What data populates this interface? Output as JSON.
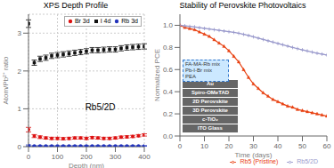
{
  "chart_data": [
    {
      "type": "scatter",
      "title": "XPS Depth Profile",
      "xlabel": "Depth (nm)",
      "ylabel": "Atom/Pb²⁺ ratio",
      "x": [
        0,
        20,
        40,
        60,
        80,
        100,
        120,
        140,
        160,
        180,
        200,
        220,
        240,
        260,
        280,
        300,
        320,
        340,
        360,
        380,
        400
      ],
      "series": [
        {
          "name": "Br 3d",
          "color": "#dd1111",
          "marker": "circle",
          "values": [
            0.45,
            0.28,
            0.25,
            0.23,
            0.22,
            0.22,
            0.21,
            0.22,
            0.23,
            0.23,
            0.22,
            0.24,
            0.23,
            0.22,
            0.22,
            0.23,
            0.25,
            0.26,
            0.27,
            0.29,
            0.31
          ],
          "errors": [
            0.06,
            0.04,
            0.035,
            0.03,
            0.03,
            0.03,
            0.03,
            0.03,
            0.03,
            0.03,
            0.03,
            0.03,
            0.03,
            0.03,
            0.03,
            0.03,
            0.03,
            0.03,
            0.03,
            0.03,
            0.03
          ]
        },
        {
          "name": "I 4d",
          "color": "#111111",
          "marker": "square",
          "values": [
            3.25,
            2.22,
            2.32,
            2.35,
            2.4,
            2.42,
            2.44,
            2.46,
            2.48,
            2.5,
            2.52,
            2.55,
            2.55,
            2.56,
            2.57,
            2.57,
            2.6,
            2.62,
            2.63,
            2.64,
            2.65
          ],
          "errors": [
            0.1,
            0.07,
            0.07,
            0.07,
            0.07,
            0.07,
            0.07,
            0.07,
            0.07,
            0.07,
            0.07,
            0.07,
            0.07,
            0.07,
            0.07,
            0.07,
            0.07,
            0.07,
            0.07,
            0.07,
            0.07
          ]
        },
        {
          "name": "Rb 3d",
          "color": "#2233bb",
          "marker": "circle",
          "values": [
            0.03,
            0.02,
            0.02,
            0.02,
            0.02,
            0.02,
            0.02,
            0.02,
            0.02,
            0.02,
            0.02,
            0.02,
            0.02,
            0.02,
            0.02,
            0.02,
            0.02,
            0.02,
            0.02,
            0.02,
            0.02
          ],
          "errors": [
            0.015,
            0.01,
            0.01,
            0.01,
            0.01,
            0.01,
            0.01,
            0.01,
            0.01,
            0.01,
            0.01,
            0.01,
            0.01,
            0.01,
            0.01,
            0.01,
            0.01,
            0.01,
            0.01,
            0.01,
            0.01
          ]
        }
      ],
      "xlim": [
        0,
        400
      ],
      "ylim": [
        0,
        3.5
      ],
      "xticks": [
        0,
        100,
        200,
        300,
        400
      ],
      "yticks": [
        0,
        1,
        2,
        3
      ],
      "grid": true,
      "legend": "upper right",
      "annotations": [
        "Rb5/2D"
      ]
    },
    {
      "type": "line",
      "title": "Stability of Perovskite Photovoltaics",
      "xlabel": "Time (days)",
      "ylabel": "Normalized PCE",
      "x": [
        0,
        2,
        4,
        6,
        8,
        10,
        12,
        14,
        16,
        18,
        20,
        22,
        24,
        26,
        28,
        30,
        32,
        34,
        36,
        38,
        40,
        42,
        44,
        46,
        48,
        50,
        52,
        54,
        56,
        58,
        60
      ],
      "series": [
        {
          "name": "Rb5 (Pristine)",
          "color": "#e84010",
          "marker": "triangle",
          "values": [
            1.0,
            0.98,
            0.97,
            0.96,
            0.94,
            0.92,
            0.9,
            0.87,
            0.84,
            0.81,
            0.77,
            0.72,
            0.67,
            0.6,
            0.53,
            0.47,
            0.43,
            0.39,
            0.36,
            0.33,
            0.31,
            0.29,
            0.27,
            0.26,
            0.24,
            0.23,
            0.22,
            0.21,
            0.2,
            0.19,
            0.18
          ]
        },
        {
          "name": "Rb5/2D",
          "color": "#9999cc",
          "marker": "plus",
          "values": [
            1.0,
            0.995,
            0.99,
            0.985,
            0.978,
            0.972,
            0.966,
            0.96,
            0.954,
            0.948,
            0.942,
            0.936,
            0.928,
            0.918,
            0.908,
            0.896,
            0.884,
            0.872,
            0.86,
            0.848,
            0.836,
            0.824,
            0.812,
            0.8,
            0.789,
            0.778,
            0.768,
            0.758,
            0.748,
            0.74,
            0.732
          ]
        }
      ],
      "xlim": [
        0,
        60
      ],
      "ylim": [
        0.0,
        1.1
      ],
      "xticks": [
        0,
        10,
        20,
        30,
        40,
        50,
        60
      ],
      "yticks": [
        {
          "value": 0,
          "label": "0.0"
        },
        0.2,
        0.4,
        0.6,
        0.8,
        {
          "value": 1,
          "label": "1.0"
        }
      ],
      "grid": false,
      "legend": "bottom",
      "annotations": [
        "Au",
        "Spiro-OMeTAD",
        "2D Perovskite",
        "3D Perovskite",
        "c-TiO₂",
        "ITO Glass",
        "FA-MA-Rb mix",
        "Pb-I-Br mix",
        "PEA"
      ]
    }
  ]
}
